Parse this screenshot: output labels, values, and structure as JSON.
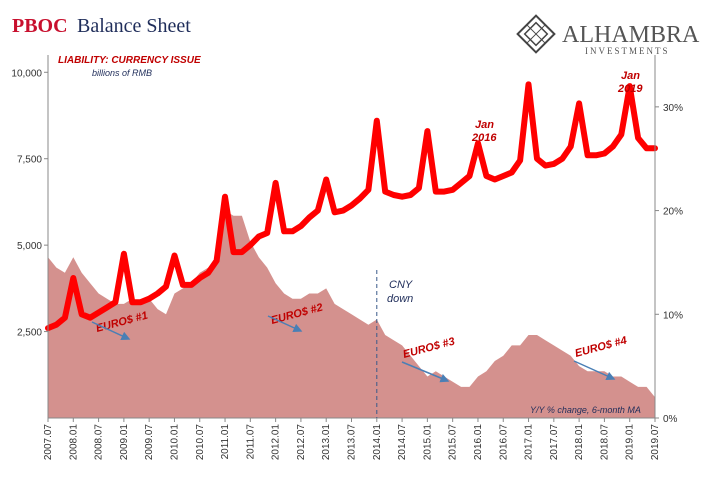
{
  "header": {
    "title_bold": "PBOC",
    "title_rest": "Balance Sheet",
    "logo_name": "ALHAMBRA",
    "logo_sub": "INVESTMENTS"
  },
  "colors": {
    "liability_line": "#ff0000",
    "yoy_area": "#d4918e",
    "annotation_red": "#c00000",
    "arrow_blue": "#4a7fb5",
    "axis": "#888888"
  },
  "annotations": {
    "liability_label": "LIABILITY: CURRENCY ISSUE",
    "units": "billions of RMB",
    "cny_line1": "CNY",
    "cny_line2": "down",
    "jan2016_line1": "Jan",
    "jan2016_line2": "2016",
    "jan2019_line1": "Jan",
    "jan2019_line2": "2019",
    "euro1": "EURO$ #1",
    "euro2": "EURO$ #2",
    "euro3": "EURO$ #3",
    "euro4": "EURO$ #4",
    "yoy_label": "Y/Y % change, 6-month MA"
  },
  "chart_data": {
    "type": "line",
    "x": [
      "2007.07",
      "2007.09",
      "2007.11",
      "2008.01",
      "2008.03",
      "2008.05",
      "2008.07",
      "2008.09",
      "2008.11",
      "2009.01",
      "2009.03",
      "2009.05",
      "2009.07",
      "2009.09",
      "2009.11",
      "2010.01",
      "2010.03",
      "2010.05",
      "2010.07",
      "2010.09",
      "2010.11",
      "2011.01",
      "2011.03",
      "2011.05",
      "2011.07",
      "2011.09",
      "2011.11",
      "2012.01",
      "2012.03",
      "2012.05",
      "2012.07",
      "2012.09",
      "2012.11",
      "2013.01",
      "2013.03",
      "2013.05",
      "2013.07",
      "2013.09",
      "2013.11",
      "2014.01",
      "2014.03",
      "2014.05",
      "2014.07",
      "2014.09",
      "2014.11",
      "2015.01",
      "2015.03",
      "2015.05",
      "2015.07",
      "2015.09",
      "2015.11",
      "2016.01",
      "2016.03",
      "2016.05",
      "2016.07",
      "2016.09",
      "2016.11",
      "2017.01",
      "2017.03",
      "2017.05",
      "2017.07",
      "2017.09",
      "2017.11",
      "2018.01",
      "2018.03",
      "2018.05",
      "2018.07",
      "2018.09",
      "2018.11",
      "2019.01",
      "2019.03",
      "2019.05",
      "2019.07"
    ],
    "x_tick_labels": [
      "2007.07",
      "2008.01",
      "2008.07",
      "2009.01",
      "2009.07",
      "2010.01",
      "2010.07",
      "2011.01",
      "2011.07",
      "2012.01",
      "2012.07",
      "2013.01",
      "2013.07",
      "2014.01",
      "2014.07",
      "2015.01",
      "2015.07",
      "2016.01",
      "2016.07",
      "2017.01",
      "2017.07",
      "2018.01",
      "2018.07",
      "2019.01",
      "2019.07"
    ],
    "series": [
      {
        "axis": "left",
        "values": [
          2600,
          2700,
          2900,
          4050,
          3000,
          2900,
          3050,
          3200,
          3350,
          4750,
          3350,
          3350,
          3450,
          3600,
          3800,
          4700,
          3850,
          3850,
          4050,
          4200,
          4550,
          6400,
          4800,
          4800,
          5000,
          5250,
          5350,
          6800,
          5400,
          5400,
          5550,
          5800,
          6000,
          6900,
          5950,
          6000,
          6150,
          6350,
          6600,
          8600,
          6550,
          6450,
          6400,
          6450,
          6650,
          8300,
          6550,
          6550,
          6600,
          6800,
          7000,
          7950,
          7000,
          6900,
          7000,
          7100,
          7450,
          9650,
          7500,
          7300,
          7350,
          7500,
          7850,
          9100,
          7600,
          7600,
          7650,
          7850,
          8200,
          9600,
          8100,
          7800,
          7800
        ]
      },
      {
        "axis": "right",
        "area": true,
        "values": [
          15.5,
          14.5,
          14,
          15.5,
          14,
          13,
          12,
          11.5,
          11,
          11,
          11.5,
          11,
          11.5,
          10.5,
          10,
          12,
          12.5,
          13,
          14,
          14.5,
          15,
          20,
          19.5,
          19.5,
          17,
          15.5,
          14.5,
          13,
          12,
          11.5,
          11.5,
          12,
          12,
          12.5,
          11,
          10.5,
          10,
          9.5,
          9,
          9.5,
          8,
          7.5,
          7,
          6,
          5,
          4,
          4.5,
          4,
          3.5,
          3,
          3,
          4,
          4.5,
          5.5,
          6,
          7,
          7,
          8,
          8,
          7.5,
          7,
          6.5,
          6,
          5,
          4.5,
          4.5,
          4.5,
          4,
          4,
          3.5,
          3,
          3,
          2
        ]
      }
    ],
    "ylim_left": [
      0,
      10500
    ],
    "yticks_left": [
      2500,
      5000,
      7500,
      10000
    ],
    "ytick_labels_left": [
      "2,500",
      "5,000",
      "7,500",
      "10,000"
    ],
    "ylim_right": [
      0,
      35
    ],
    "yticks_right": [
      0,
      10,
      20,
      30
    ],
    "ytick_labels_right": [
      "0%",
      "10%",
      "20%",
      "30%"
    ],
    "vline_x": "2014.01",
    "grid": false
  }
}
